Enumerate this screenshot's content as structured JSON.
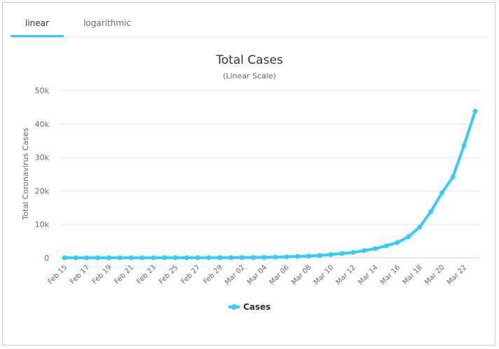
{
  "tabs": [
    {
      "label": "linear",
      "active": true
    },
    {
      "label": "logarithmic",
      "active": false
    }
  ],
  "colors": {
    "accent": "#33ccff",
    "series": "#33ccff",
    "grid": "#e6e6e6",
    "axis": "#ccd6eb"
  },
  "chart_data": {
    "type": "line",
    "title": "Total Cases",
    "subtitle": "(Linear Scale)",
    "xlabel": "",
    "ylabel": "Total Coronavirus Cases",
    "ylim": [
      0,
      50000
    ],
    "yticks": [
      0,
      10000,
      20000,
      30000,
      40000,
      50000
    ],
    "ytick_labels": [
      "0",
      "10k",
      "20k",
      "30k",
      "40k",
      "50k"
    ],
    "x": [
      "Feb 15",
      "Feb 16",
      "Feb 17",
      "Feb 18",
      "Feb 19",
      "Feb 20",
      "Feb 21",
      "Feb 22",
      "Feb 23",
      "Feb 24",
      "Feb 25",
      "Feb 26",
      "Feb 27",
      "Feb 28",
      "Feb 29",
      "Mar 01",
      "Mar 02",
      "Mar 03",
      "Mar 04",
      "Mar 05",
      "Mar 06",
      "Mar 07",
      "Mar 08",
      "Mar 09",
      "Mar 10",
      "Mar 11",
      "Mar 12",
      "Mar 13",
      "Mar 14",
      "Mar 15",
      "Mar 16",
      "Mar 17",
      "Mar 18",
      "Mar 19",
      "Mar 20",
      "Mar 21",
      "Mar 22",
      "Mar 23"
    ],
    "xtick_labels": [
      "Feb 15",
      "Feb 17",
      "Feb 19",
      "Feb 21",
      "Feb 23",
      "Feb 25",
      "Feb 27",
      "Feb 29",
      "Mar 02",
      "Mar 04",
      "Mar 06",
      "Mar 08",
      "Mar 10",
      "Mar 12",
      "Mar 14",
      "Mar 16",
      "Mar 18",
      "Mar 20",
      "Mar 22"
    ],
    "series": [
      {
        "name": "Cases",
        "values": [
          15,
          15,
          15,
          15,
          15,
          35,
          35,
          35,
          35,
          53,
          53,
          59,
          60,
          62,
          68,
          75,
          100,
          124,
          158,
          221,
          319,
          435,
          541,
          704,
          994,
          1301,
          1630,
          2183,
          2770,
          3613,
          4596,
          6344,
          9197,
          13779,
          19367,
          24192,
          33592,
          43781
        ]
      }
    ],
    "legend": "bottom-center",
    "grid": true
  }
}
